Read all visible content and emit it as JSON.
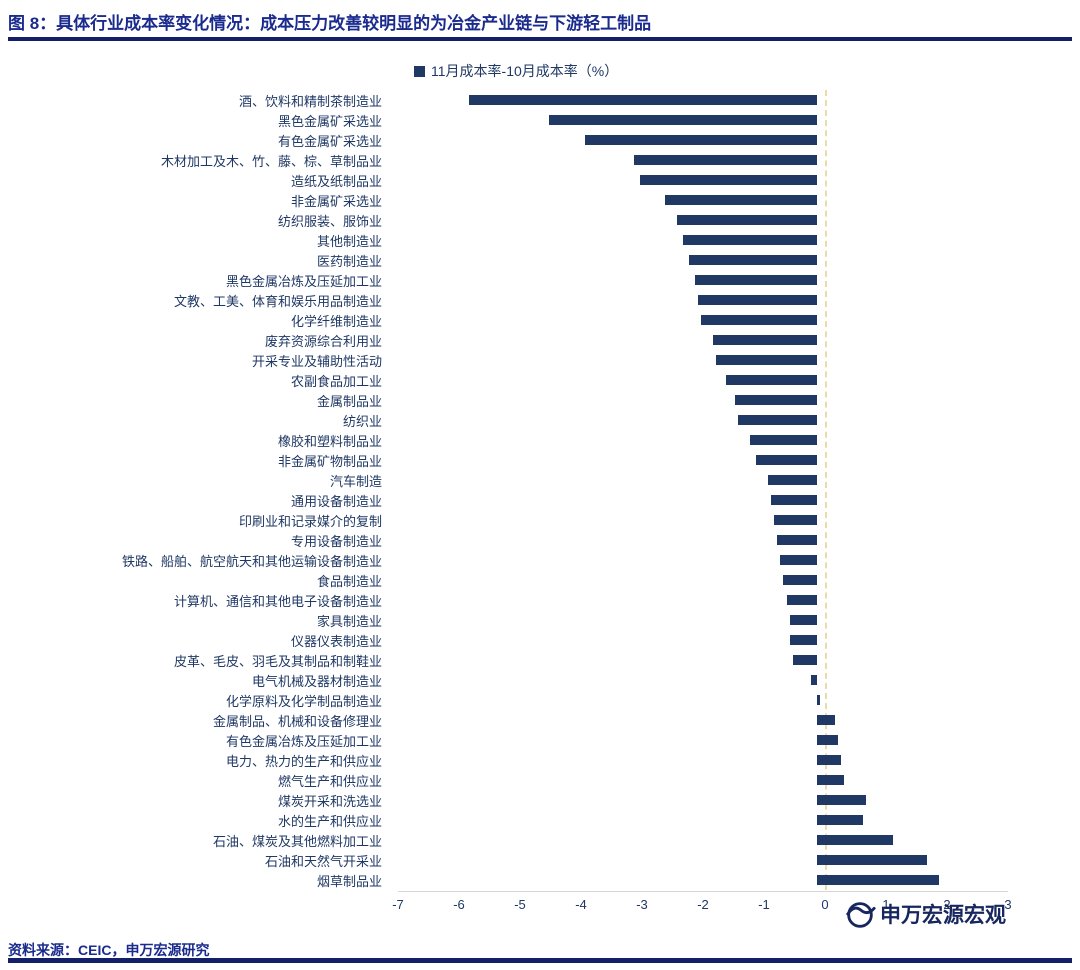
{
  "header": {
    "title": "图 8：具体行业成本率变化情况：成本压力改善较明显的为冶金产业链与下游轻工制品"
  },
  "legend": {
    "label": "11月成本率-10月成本率（%）"
  },
  "chart_data": {
    "type": "bar",
    "orientation": "horizontal",
    "title": "",
    "legend_entries": [
      "11月成本率-10月成本率（%）"
    ],
    "legend_position": "top",
    "grid": false,
    "bar_color": "#1f3864",
    "xlabel": "",
    "ylabel": "",
    "xlim": [
      -7,
      3
    ],
    "xticks": [
      -7,
      -6,
      -5,
      -4,
      -3,
      -2,
      -1,
      0,
      1,
      2,
      3
    ],
    "categories": [
      "酒、饮料和精制茶制造业",
      "黑色金属矿采选业",
      "有色金属矿采选业",
      "木材加工及木、竹、藤、棕、草制品业",
      "造纸及纸制品业",
      "非金属矿采选业",
      "纺织服装、服饰业",
      "其他制造业",
      "医药制造业",
      "黑色金属冶炼及压延加工业",
      "文教、工美、体育和娱乐用品制造业",
      "化学纤维制造业",
      "废弃资源综合利用业",
      "开采专业及辅助性活动",
      "农副食品加工业",
      "金属制品业",
      "纺织业",
      "橡胶和塑料制品业",
      "非金属矿物制品业",
      "汽车制造",
      "通用设备制造业",
      "印刷业和记录媒介的复制",
      "专用设备制造业",
      "铁路、船舶、航空航天和其他运输设备制造业",
      "食品制造业",
      "计算机、通信和其他电子设备制造业",
      "家具制造业",
      "仪器仪表制造业",
      "皮革、毛皮、羽毛及其制品和制鞋业",
      "电气机械及器材制造业",
      "化学原料及化学制品制造业",
      "金属制品、机械和设备修理业",
      "有色金属冶炼及压延加工业",
      "电力、热力的生产和供应业",
      "燃气生产和供应业",
      "煤炭开采和洗选业",
      "水的生产和供应业",
      "石油、煤炭及其他燃料加工业",
      "石油和天然气开采业",
      "烟草制品业"
    ],
    "values": [
      -5.7,
      -4.4,
      -3.8,
      -3.0,
      -2.9,
      -2.5,
      -2.3,
      -2.2,
      -2.1,
      -2.0,
      -1.95,
      -1.9,
      -1.7,
      -1.65,
      -1.5,
      -1.35,
      -1.3,
      -1.1,
      -1.0,
      -0.8,
      -0.75,
      -0.7,
      -0.65,
      -0.6,
      -0.55,
      -0.5,
      -0.45,
      -0.45,
      -0.4,
      -0.1,
      0.05,
      0.3,
      0.35,
      0.4,
      0.45,
      0.8,
      0.75,
      1.25,
      1.8,
      2.0
    ]
  },
  "footer": {
    "source": "资料来源：CEIC，申万宏源研究",
    "logo_icon": "sws-circle-swoosh-icon",
    "logo_text": "申万宏源宏观"
  }
}
